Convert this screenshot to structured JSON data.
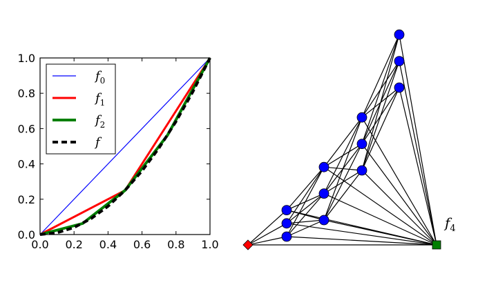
{
  "chart_data": [
    {
      "type": "line",
      "xlim": [
        0,
        1
      ],
      "ylim": [
        0,
        1
      ],
      "xticks": [
        "0.0",
        "0.2",
        "0.4",
        "0.6",
        "0.8",
        "1.0"
      ],
      "yticks": [
        "0.0",
        "0.2",
        "0.4",
        "0.6",
        "0.8",
        "1.0"
      ],
      "grid": false,
      "legend_placement": "top-left",
      "series": [
        {
          "name": "f",
          "subscript": "0",
          "color": "#0000ff",
          "style": "solid",
          "x": [
            0,
            1
          ],
          "y": [
            0,
            1
          ]
        },
        {
          "name": "f",
          "subscript": "1",
          "color": "#ff0000",
          "style": "solid",
          "x": [
            0,
            0.5,
            1
          ],
          "y": [
            0,
            0.25,
            1
          ]
        },
        {
          "name": "f",
          "subscript": "2",
          "color": "#007f00",
          "style": "solid",
          "x": [
            0,
            0.25,
            0.5,
            0.75,
            1
          ],
          "y": [
            0,
            0.0625,
            0.25,
            0.5625,
            1
          ]
        },
        {
          "name": "f",
          "subscript": "",
          "color": "#000000",
          "style": "dashed",
          "x": [
            0,
            0.1,
            0.2,
            0.3,
            0.4,
            0.5,
            0.6,
            0.7,
            0.8,
            0.9,
            1
          ],
          "y": [
            0,
            0.01,
            0.04,
            0.09,
            0.16,
            0.25,
            0.36,
            0.49,
            0.64,
            0.81,
            1
          ]
        }
      ]
    },
    {
      "type": "diagram",
      "label": {
        "text": "f",
        "subscript": "4"
      },
      "colors": {
        "source": "#ff0000",
        "sink": "#007f00",
        "layer": "#0000ff",
        "edge": "#000000"
      },
      "layers": [
        {
          "x": 0,
          "y": [
            0,
            0.05,
            0.1
          ]
        },
        {
          "x": 0.25,
          "y": [
            0.0625,
            0.1625,
            0.2625
          ]
        },
        {
          "x": 0.5,
          "y": [
            0.25,
            0.35,
            0.45
          ]
        },
        {
          "x": 0.75,
          "y": [
            0.5625,
            0.6625,
            0.7625
          ]
        }
      ]
    }
  ]
}
